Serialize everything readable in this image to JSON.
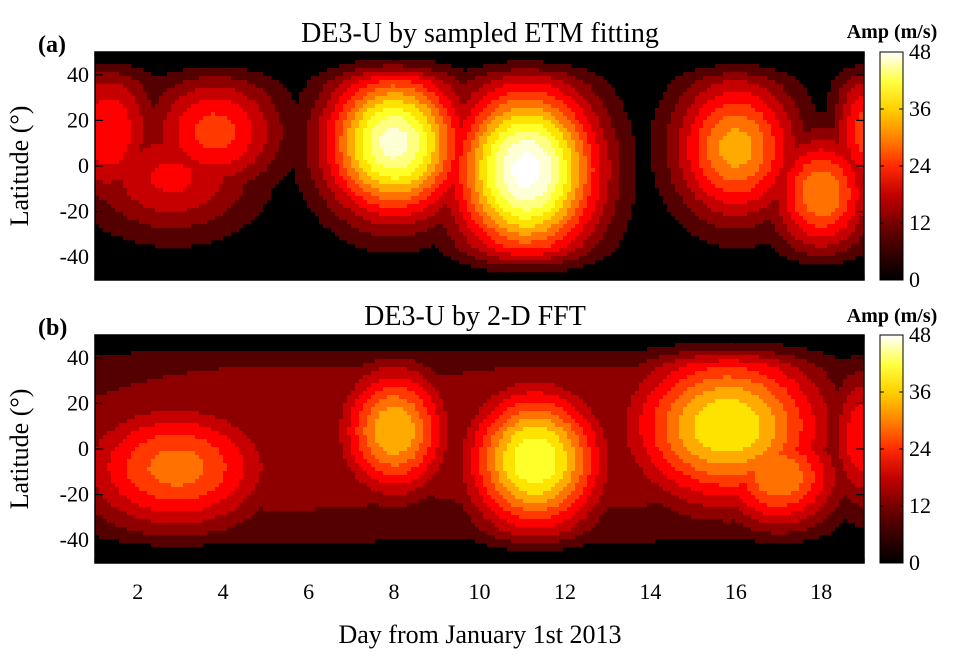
{
  "chart_data": [
    {
      "type": "heatmap",
      "panel_label": "(a)",
      "title": "DE3-U by sampled ETM  fitting",
      "ylabel": "Latitude (°)",
      "xlim": [
        1,
        19
      ],
      "ylim": [
        -50,
        50
      ],
      "yticks": [
        -40,
        -20,
        0,
        20,
        40
      ],
      "xticks": [
        2,
        4,
        6,
        8,
        10,
        12,
        14,
        16,
        18
      ],
      "colorbar": {
        "label": "Amp (m/s)",
        "ticks": [
          0,
          12,
          24,
          36,
          48
        ],
        "range": [
          0,
          48
        ],
        "colormap": "hot"
      },
      "levels": [
        0,
        4,
        8,
        12,
        16,
        20,
        24,
        28,
        32,
        36,
        40,
        44,
        48
      ],
      "hotspots": [
        {
          "day": 1.3,
          "lat": 15,
          "amp": 20,
          "sx": 0.8,
          "sy": 22
        },
        {
          "day": 3.8,
          "lat": 15,
          "amp": 22,
          "sx": 1.1,
          "sy": 18
        },
        {
          "day": 2.8,
          "lat": -5,
          "amp": 17,
          "sx": 1.4,
          "sy": 18
        },
        {
          "day": 8.0,
          "lat": 10,
          "amp": 46,
          "sx": 1.1,
          "sy": 22
        },
        {
          "day": 11.1,
          "lat": -2,
          "amp": 50,
          "sx": 1.15,
          "sy": 26
        },
        {
          "day": 16.0,
          "lat": 8,
          "amp": 30,
          "sx": 1.0,
          "sy": 22
        },
        {
          "day": 18.0,
          "lat": -12,
          "amp": 28,
          "sx": 0.8,
          "sy": 18
        },
        {
          "day": 19.0,
          "lat": 15,
          "amp": 22,
          "sx": 0.5,
          "sy": 20
        }
      ]
    },
    {
      "type": "heatmap",
      "panel_label": "(b)",
      "title": "DE3-U by 2-D FFT",
      "ylabel": "Latitude (°)",
      "xlabel": "Day from January 1st 2013",
      "xlim": [
        1,
        19
      ],
      "ylim": [
        -50,
        50
      ],
      "yticks": [
        -40,
        -20,
        0,
        20,
        40
      ],
      "xticks": [
        2,
        4,
        6,
        8,
        10,
        12,
        14,
        16,
        18
      ],
      "colorbar": {
        "label": "Amp (m/s)",
        "ticks": [
          0,
          12,
          24,
          36,
          48
        ],
        "range": [
          0,
          48
        ],
        "colormap": "hot"
      },
      "levels": [
        0,
        4,
        8,
        12,
        16,
        20,
        24,
        28,
        32,
        36,
        40,
        44,
        48
      ],
      "background": [
        {
          "day": 5.5,
          "lat": 5,
          "amp": 12,
          "sx": 6.0,
          "sy": 35
        },
        {
          "day": 12.0,
          "lat": 5,
          "amp": 12,
          "sx": 6.0,
          "sy": 35
        }
      ],
      "hotspots": [
        {
          "day": 2.9,
          "lat": -8,
          "amp": 26,
          "sx": 1.6,
          "sy": 20
        },
        {
          "day": 8.0,
          "lat": 8,
          "amp": 32,
          "sx": 0.9,
          "sy": 20
        },
        {
          "day": 11.3,
          "lat": -5,
          "amp": 40,
          "sx": 1.1,
          "sy": 22
        },
        {
          "day": 15.8,
          "lat": 10,
          "amp": 36,
          "sx": 1.6,
          "sy": 24
        },
        {
          "day": 17.0,
          "lat": -12,
          "amp": 28,
          "sx": 1.0,
          "sy": 16
        },
        {
          "day": 19.0,
          "lat": 5,
          "amp": 20,
          "sx": 0.6,
          "sy": 22
        }
      ]
    }
  ]
}
